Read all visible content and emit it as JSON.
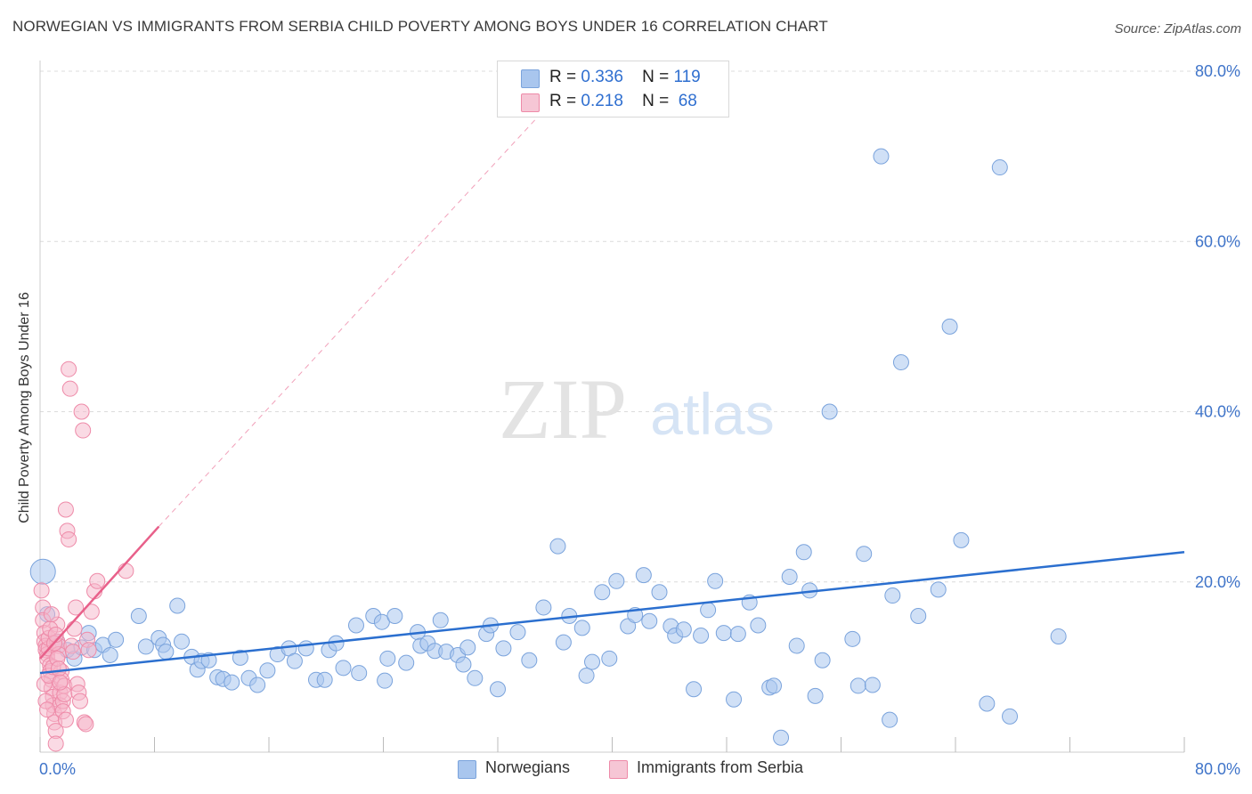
{
  "title": "NORWEGIAN VS IMMIGRANTS FROM SERBIA CHILD POVERTY AMONG BOYS UNDER 16 CORRELATION CHART",
  "source": "Source: ZipAtlas.com",
  "watermark": {
    "zip": "ZIP",
    "atlas": "atlas"
  },
  "legend_top": {
    "rows": [
      {
        "r_label": "R =",
        "r_value": "0.336",
        "n_label": "N =",
        "n_value": "119"
      },
      {
        "r_label": "R =",
        "r_value": "0.218",
        "n_label": "N =",
        "n_value": "68"
      }
    ]
  },
  "legend_bottom": {
    "series1": "Norwegians",
    "series2": "Immigrants from Serbia"
  },
  "colors": {
    "blue_fill": "#a9c6ee",
    "blue_stroke": "#7aa3dc",
    "blue_line": "#2b6fcf",
    "pink_fill": "#f6b6c9",
    "pink_stroke": "#ee8aa8",
    "pink_line": "#e8608a",
    "axis_text": "#3f74c9",
    "grid": "#dcdcdc"
  },
  "chart_data": {
    "type": "scatter",
    "title": "NORWEGIAN VS IMMIGRANTS FROM SERBIA CHILD POVERTY AMONG BOYS UNDER 16 CORRELATION CHART",
    "xlabel": "",
    "ylabel": "Child Poverty Among Boys Under 16",
    "xlim": [
      0,
      80
    ],
    "ylim": [
      0,
      80
    ],
    "x_tick_labels": [
      "0.0%",
      "80.0%"
    ],
    "y_tick_labels": [
      "20.0%",
      "40.0%",
      "60.0%",
      "80.0%"
    ],
    "y_ticks": [
      20,
      40,
      60,
      80
    ],
    "series": [
      {
        "name": "Norwegians",
        "R": 0.336,
        "N": 119,
        "trend": {
          "x0": 0,
          "y0": 9.3,
          "x1": 80,
          "y1": 23.5
        },
        "points": [
          [
            0.2,
            21.2
          ],
          [
            0.5,
            16.2
          ],
          [
            1.2,
            13.0
          ],
          [
            1.9,
            12.0
          ],
          [
            2.4,
            11.0
          ],
          [
            2.9,
            12.3
          ],
          [
            3.4,
            14.0
          ],
          [
            3.8,
            12.0
          ],
          [
            4.4,
            12.6
          ],
          [
            4.9,
            11.4
          ],
          [
            5.3,
            13.2
          ],
          [
            6.9,
            16.0
          ],
          [
            7.4,
            12.4
          ],
          [
            8.3,
            13.4
          ],
          [
            8.6,
            12.6
          ],
          [
            8.8,
            11.8
          ],
          [
            9.6,
            17.2
          ],
          [
            9.9,
            13.0
          ],
          [
            10.6,
            11.2
          ],
          [
            11.0,
            9.7
          ],
          [
            11.3,
            10.7
          ],
          [
            11.8,
            10.8
          ],
          [
            12.4,
            8.8
          ],
          [
            12.8,
            8.6
          ],
          [
            13.4,
            8.2
          ],
          [
            14.0,
            11.1
          ],
          [
            14.6,
            8.7
          ],
          [
            15.2,
            7.9
          ],
          [
            15.9,
            9.6
          ],
          [
            16.6,
            11.5
          ],
          [
            17.4,
            12.2
          ],
          [
            17.8,
            10.7
          ],
          [
            18.6,
            12.2
          ],
          [
            19.3,
            8.5
          ],
          [
            19.9,
            8.5
          ],
          [
            20.2,
            12.0
          ],
          [
            20.7,
            12.8
          ],
          [
            21.2,
            9.9
          ],
          [
            22.1,
            14.9
          ],
          [
            22.3,
            9.3
          ],
          [
            23.3,
            16.0
          ],
          [
            23.9,
            15.3
          ],
          [
            24.1,
            8.4
          ],
          [
            24.3,
            11.0
          ],
          [
            24.8,
            16.0
          ],
          [
            25.6,
            10.5
          ],
          [
            26.4,
            14.1
          ],
          [
            26.6,
            12.5
          ],
          [
            27.1,
            12.8
          ],
          [
            27.6,
            11.9
          ],
          [
            28.0,
            15.5
          ],
          [
            28.4,
            11.8
          ],
          [
            29.2,
            11.4
          ],
          [
            29.6,
            10.3
          ],
          [
            29.9,
            12.3
          ],
          [
            30.4,
            8.7
          ],
          [
            31.2,
            13.9
          ],
          [
            31.5,
            14.9
          ],
          [
            32.0,
            7.4
          ],
          [
            32.4,
            12.2
          ],
          [
            33.4,
            14.1
          ],
          [
            34.2,
            10.8
          ],
          [
            35.2,
            17.0
          ],
          [
            36.2,
            24.2
          ],
          [
            36.6,
            12.9
          ],
          [
            37.0,
            16.0
          ],
          [
            37.9,
            14.6
          ],
          [
            38.2,
            9.0
          ],
          [
            38.6,
            10.6
          ],
          [
            39.3,
            18.8
          ],
          [
            39.8,
            11.0
          ],
          [
            40.3,
            20.1
          ],
          [
            41.1,
            14.8
          ],
          [
            41.6,
            16.1
          ],
          [
            42.2,
            20.8
          ],
          [
            42.6,
            15.4
          ],
          [
            43.3,
            18.8
          ],
          [
            44.1,
            14.8
          ],
          [
            44.4,
            13.7
          ],
          [
            45.0,
            14.4
          ],
          [
            45.7,
            7.4
          ],
          [
            46.2,
            13.7
          ],
          [
            46.7,
            16.7
          ],
          [
            47.2,
            20.1
          ],
          [
            47.8,
            14.0
          ],
          [
            48.5,
            6.2
          ],
          [
            48.8,
            13.9
          ],
          [
            49.6,
            17.6
          ],
          [
            50.2,
            14.9
          ],
          [
            51.0,
            7.6
          ],
          [
            51.3,
            7.8
          ],
          [
            51.8,
            1.7
          ],
          [
            52.4,
            20.6
          ],
          [
            52.9,
            12.5
          ],
          [
            53.4,
            23.5
          ],
          [
            53.8,
            19.0
          ],
          [
            54.2,
            6.6
          ],
          [
            54.7,
            10.8
          ],
          [
            55.2,
            40.0
          ],
          [
            56.8,
            13.3
          ],
          [
            57.2,
            7.8
          ],
          [
            57.6,
            23.3
          ],
          [
            58.2,
            7.9
          ],
          [
            58.8,
            70.0
          ],
          [
            59.4,
            3.8
          ],
          [
            59.6,
            18.4
          ],
          [
            60.2,
            45.8
          ],
          [
            61.4,
            16.0
          ],
          [
            62.8,
            19.1
          ],
          [
            63.6,
            50.0
          ],
          [
            64.4,
            24.9
          ],
          [
            66.2,
            5.7
          ],
          [
            67.1,
            68.7
          ],
          [
            67.8,
            4.2
          ],
          [
            71.2,
            13.6
          ]
        ]
      },
      {
        "name": "Immigrants from Serbia",
        "R": 0.218,
        "N": 68,
        "trend": {
          "x0": 0,
          "y0": 11.0,
          "x1": 8.3,
          "y1": 26.5,
          "dash_to": {
            "x": 35.0,
            "y": 75.0
          }
        },
        "points": [
          [
            0.1,
            19.0
          ],
          [
            0.2,
            17.0
          ],
          [
            0.2,
            15.5
          ],
          [
            0.3,
            14.0
          ],
          [
            0.3,
            13.0
          ],
          [
            0.4,
            12.5
          ],
          [
            0.4,
            12.0
          ],
          [
            0.5,
            11.5
          ],
          [
            0.5,
            11.0
          ],
          [
            0.6,
            12.2
          ],
          [
            0.6,
            13.4
          ],
          [
            0.7,
            10.2
          ],
          [
            0.7,
            9.5
          ],
          [
            0.8,
            8.5
          ],
          [
            0.8,
            7.5
          ],
          [
            0.9,
            6.5
          ],
          [
            0.9,
            5.5
          ],
          [
            1.0,
            4.5
          ],
          [
            1.0,
            3.5
          ],
          [
            1.1,
            2.5
          ],
          [
            1.1,
            1.0
          ],
          [
            1.2,
            15.0
          ],
          [
            1.2,
            13.0
          ],
          [
            1.3,
            12.5
          ],
          [
            1.3,
            11.5
          ],
          [
            1.4,
            7.0
          ],
          [
            1.4,
            5.5
          ],
          [
            1.5,
            9.5
          ],
          [
            1.5,
            8.5
          ],
          [
            1.6,
            6.0
          ],
          [
            1.6,
            4.8
          ],
          [
            1.7,
            7.8
          ],
          [
            1.7,
            6.8
          ],
          [
            1.8,
            3.8
          ],
          [
            1.8,
            28.5
          ],
          [
            1.9,
            26.0
          ],
          [
            2.0,
            25.0
          ],
          [
            2.0,
            45.0
          ],
          [
            2.1,
            42.7
          ],
          [
            2.2,
            12.5
          ],
          [
            2.3,
            11.8
          ],
          [
            2.4,
            14.5
          ],
          [
            2.5,
            17.0
          ],
          [
            2.6,
            8.0
          ],
          [
            2.7,
            7.0
          ],
          [
            2.8,
            6.0
          ],
          [
            2.9,
            40.0
          ],
          [
            3.0,
            37.8
          ],
          [
            3.1,
            3.5
          ],
          [
            3.2,
            3.3
          ],
          [
            3.3,
            13.2
          ],
          [
            3.4,
            12.0
          ],
          [
            3.6,
            16.5
          ],
          [
            3.8,
            18.9
          ],
          [
            4.0,
            20.1
          ],
          [
            6.0,
            21.3
          ],
          [
            0.3,
            8.0
          ],
          [
            0.4,
            6.0
          ],
          [
            0.5,
            5.0
          ],
          [
            0.6,
            9.0
          ],
          [
            0.7,
            14.5
          ],
          [
            0.8,
            16.2
          ],
          [
            0.9,
            10.0
          ],
          [
            1.0,
            12.8
          ],
          [
            1.1,
            13.8
          ],
          [
            1.2,
            11.0
          ],
          [
            1.3,
            9.8
          ],
          [
            1.4,
            8.2
          ]
        ]
      }
    ]
  }
}
